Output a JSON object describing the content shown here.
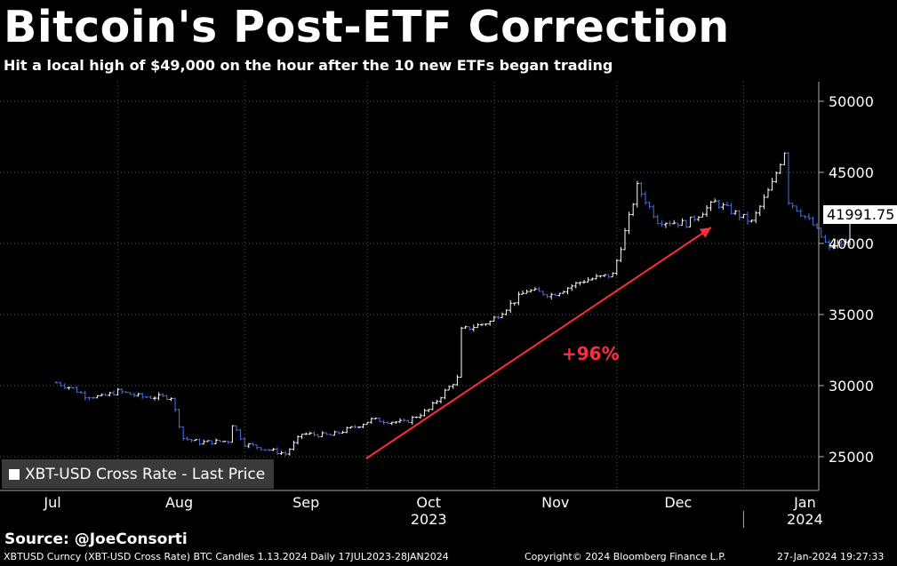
{
  "title": "Bitcoin's Post-ETF Correction",
  "subtitle": "Hit a local high of $49,000 on the hour after the 10 new ETFs began trading",
  "legend_label": "XBT-USD Cross Rate - Last Price",
  "last_price_label": "41991.75",
  "annotation": "+96%",
  "source": "Source:  @JoeConsorti",
  "footer": {
    "left": "XBTUSD Curncy (XBT-USD Cross Rate) BTC Candles 1.13.2024  Daily 17JUL2023-28JAN2024",
    "center": "Copyright© 2024 Bloomberg Finance L.P.",
    "right": "27-Jan-2024 19:27:33"
  },
  "colors": {
    "up": "#ffffff",
    "down": "#4a74e6",
    "arrow": "#ff2d3d",
    "grid": "#555555"
  },
  "chart_data": {
    "type": "line",
    "y_ticks": [
      "50000",
      "45000",
      "40000",
      "35000",
      "30000",
      "25000"
    ],
    "ylim": [
      23000,
      51500
    ],
    "grid": true,
    "legend_position": "bottom-left",
    "month_labels": [
      "Jul",
      "Aug",
      "Sep",
      "Oct",
      "Nov",
      "Dec",
      "Jan"
    ],
    "year_labels": [
      "2023",
      "2024"
    ],
    "series": [
      {
        "name": "XBT-USD Cross Rate - Last Price",
        "x": [
          "2023-07-17",
          "2023-07-21",
          "2023-07-24",
          "2023-07-28",
          "2023-08-01",
          "2023-08-07",
          "2023-08-14",
          "2023-08-17",
          "2023-08-21",
          "2023-08-28",
          "2023-08-29",
          "2023-09-01",
          "2023-09-11",
          "2023-09-15",
          "2023-09-22",
          "2023-09-28",
          "2023-10-02",
          "2023-10-10",
          "2023-10-16",
          "2023-10-20",
          "2023-10-23",
          "2023-10-24",
          "2023-10-31",
          "2023-11-09",
          "2023-11-15",
          "2023-11-23",
          "2023-11-30",
          "2023-12-04",
          "2023-12-06",
          "2023-12-11",
          "2023-12-18",
          "2023-12-25",
          "2024-01-03",
          "2024-01-08",
          "2024-01-11",
          "2024-01-12",
          "2024-01-18",
          "2024-01-22",
          "2024-01-23",
          "2024-01-26",
          "2024-01-27"
        ],
        "values": [
          30200,
          29800,
          29300,
          29200,
          29600,
          29200,
          29200,
          26300,
          26000,
          26100,
          27300,
          25900,
          25200,
          26600,
          26500,
          27100,
          27600,
          27400,
          28300,
          29600,
          30500,
          33900,
          34500,
          36700,
          36400,
          37400,
          37800,
          41800,
          44000,
          41600,
          41400,
          42900,
          41500,
          44200,
          46500,
          43000,
          41300,
          39600,
          39900,
          40000,
          41992
        ]
      }
    ]
  }
}
